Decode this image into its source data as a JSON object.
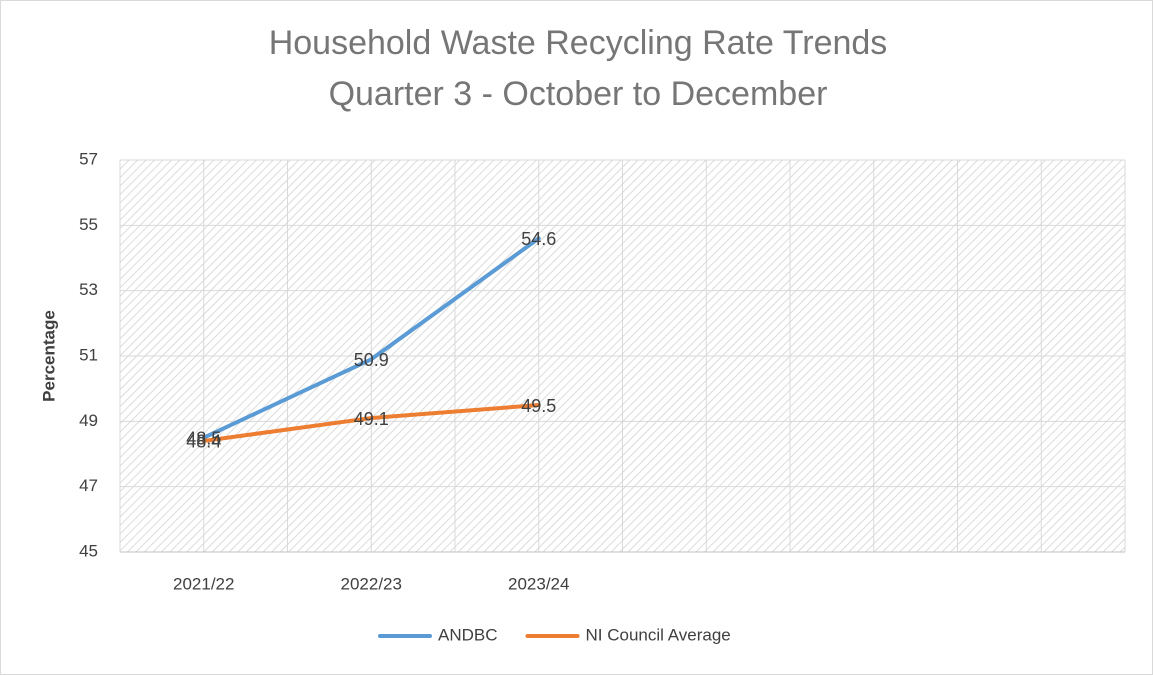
{
  "chart_data": {
    "type": "line",
    "title": "Household Waste Recycling Rate Trends",
    "subtitle": "Quarter 3 - October to December",
    "y_label": "Percentage",
    "categories": [
      "2021/22",
      "2022/23",
      "2023/24",
      null,
      null,
      null
    ],
    "series": [
      {
        "name": "ANDBC",
        "color": "#5b9bd5",
        "values": [
          48.5,
          50.9,
          54.6,
          null,
          null,
          null
        ]
      },
      {
        "name": "NI Council Average",
        "color": "#ed7d31",
        "values": [
          48.4,
          49.1,
          49.5,
          null,
          null,
          null
        ]
      }
    ],
    "ylim": [
      45,
      57
    ],
    "yticks": [
      45,
      47,
      49,
      51,
      53,
      55,
      57
    ],
    "grid": true,
    "legend": "bottom"
  }
}
